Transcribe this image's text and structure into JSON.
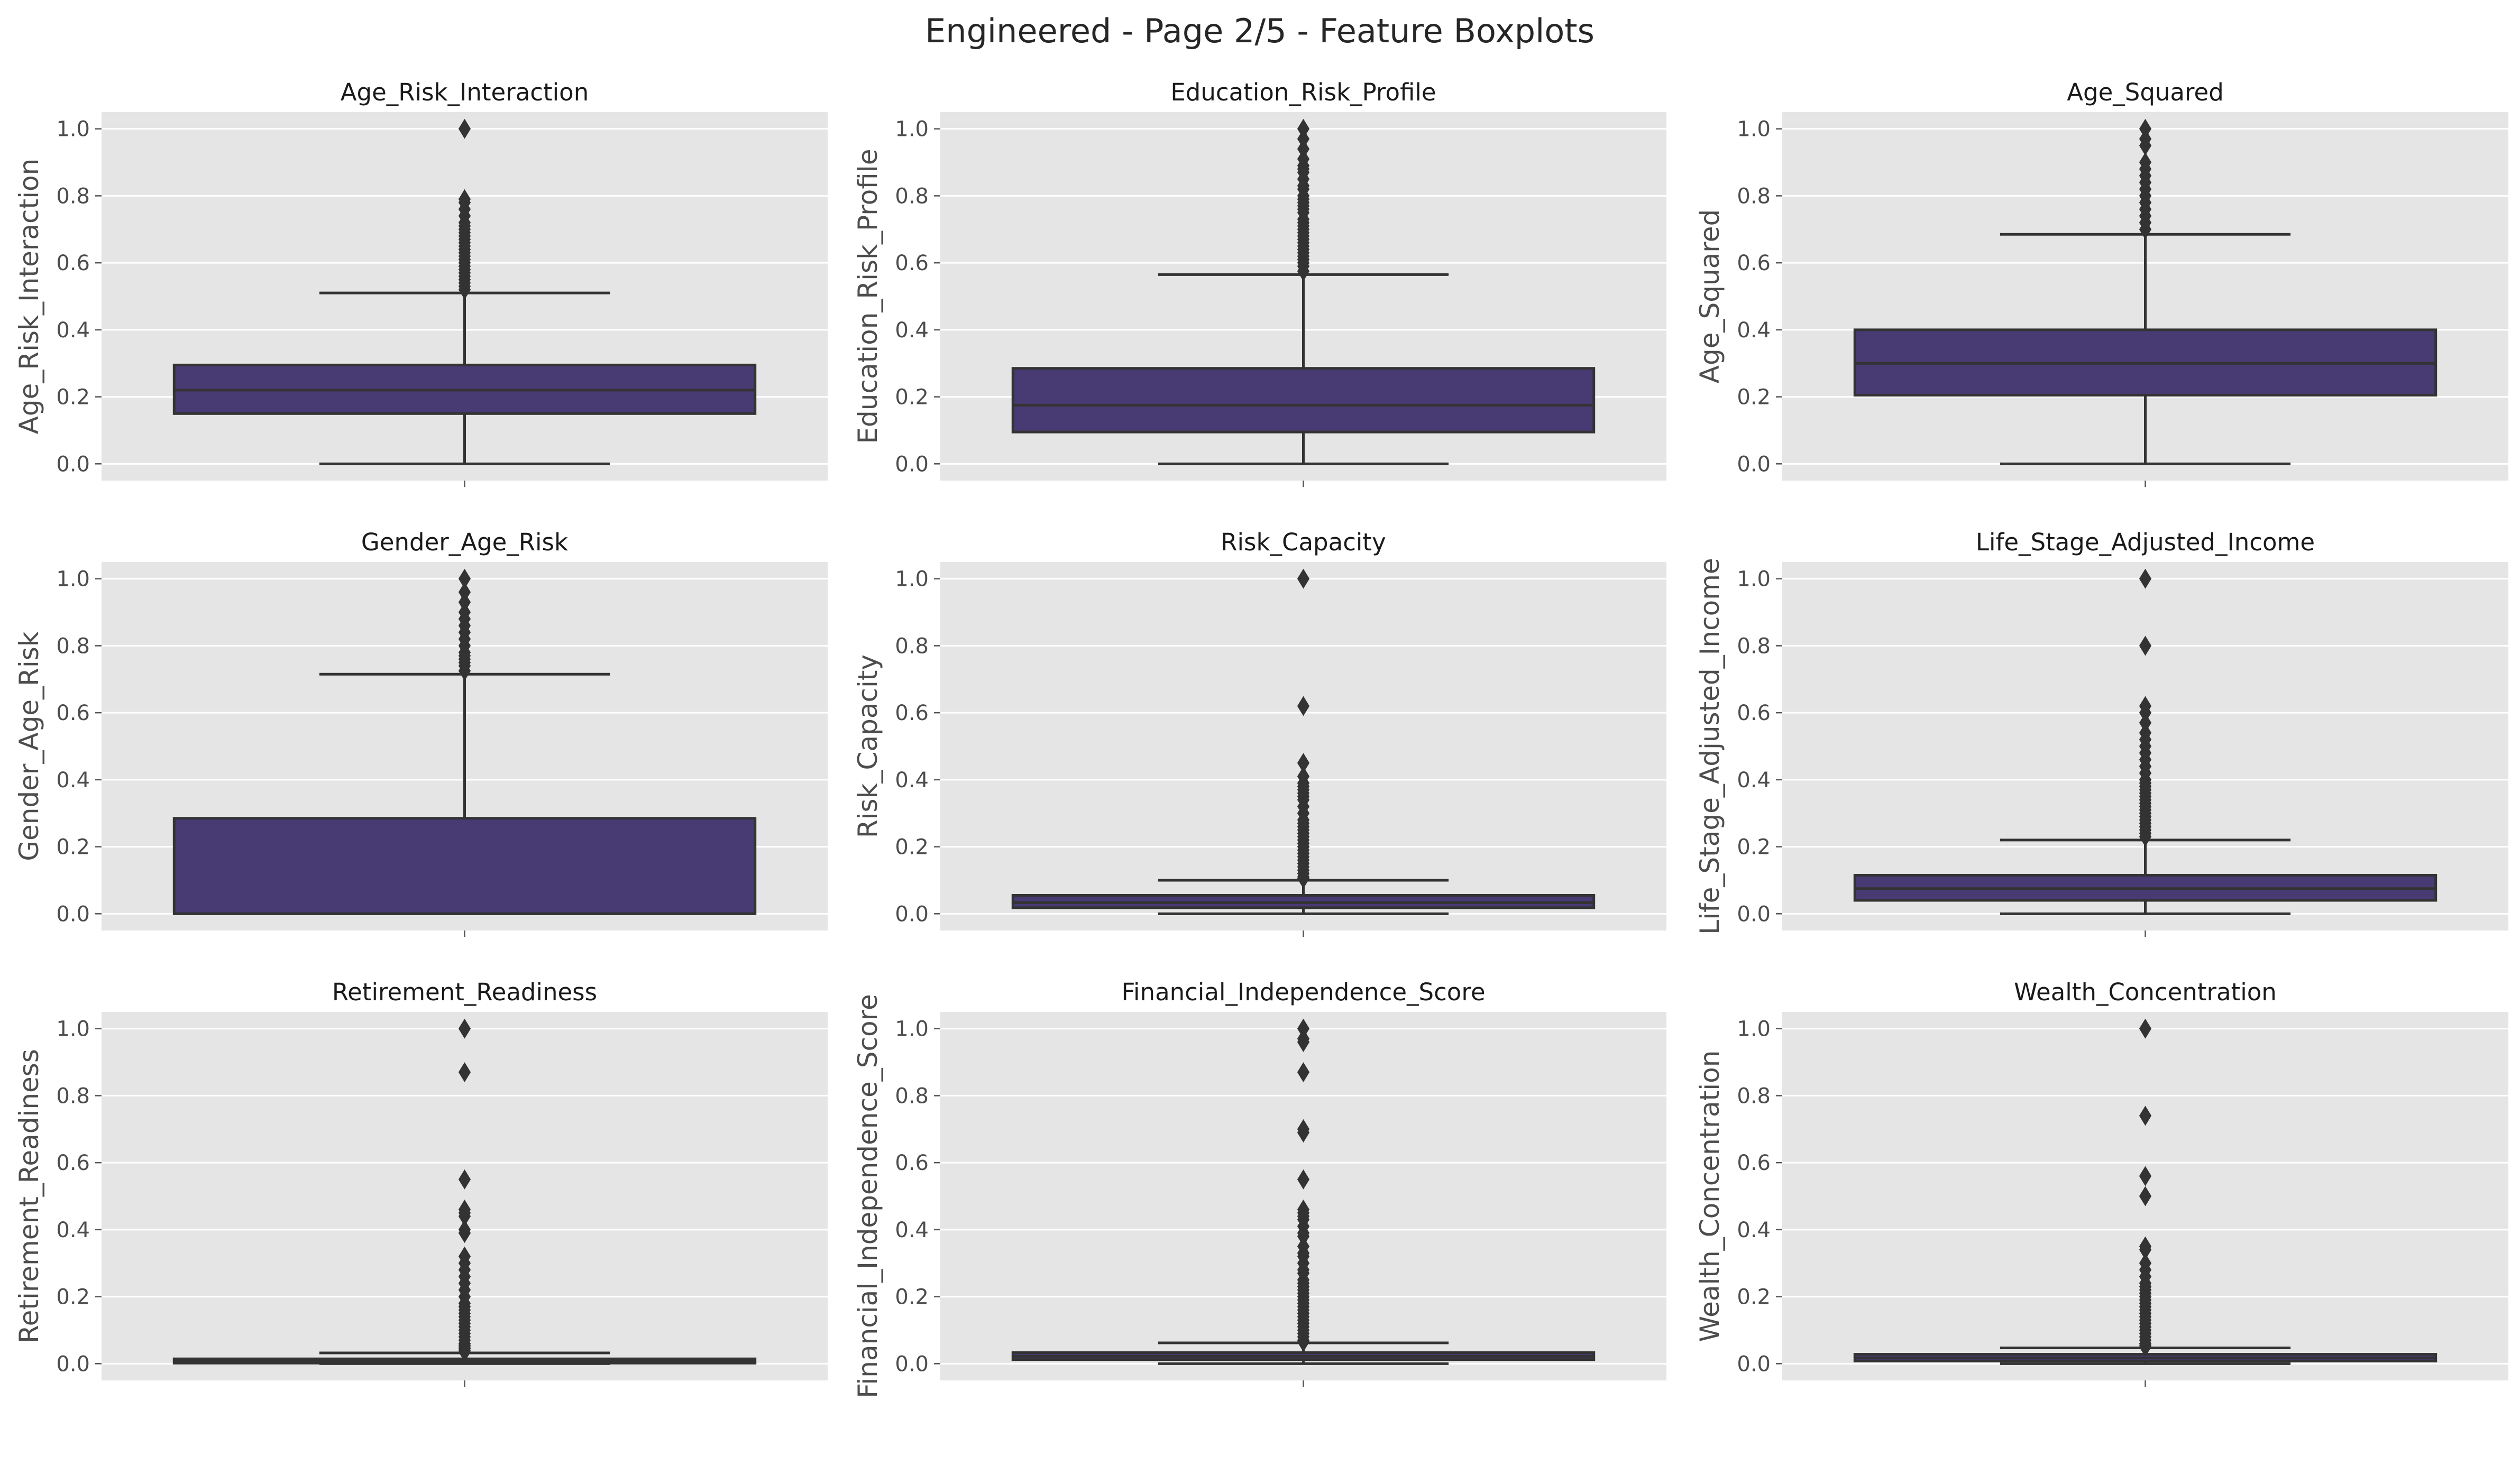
{
  "figure": {
    "title": "Engineered - Page 2/5 - Feature Boxplots",
    "colors": {
      "panel_bg": "#e5e5e5",
      "grid": "#ffffff",
      "box_fill": "#483a73",
      "line": "#333333",
      "tick_text": "#4d4d4d"
    }
  },
  "chart_data": [
    {
      "type": "box",
      "title": "Age_Risk_Interaction",
      "ylabel": "Age_Risk_Interaction",
      "ylim": [
        -0.05,
        1.05
      ],
      "yticks": [
        "0.0",
        "0.2",
        "0.4",
        "0.6",
        "0.8",
        "1.0"
      ],
      "whisker_low": 0.0,
      "q1": 0.15,
      "median": 0.22,
      "q3": 0.295,
      "whisker_high": 0.51,
      "outliers": [
        0.52,
        0.53,
        0.54,
        0.55,
        0.56,
        0.57,
        0.58,
        0.59,
        0.6,
        0.61,
        0.62,
        0.63,
        0.64,
        0.65,
        0.66,
        0.67,
        0.68,
        0.69,
        0.7,
        0.71,
        0.72,
        0.74,
        0.76,
        0.78,
        0.79,
        1.0
      ]
    },
    {
      "type": "box",
      "title": "Education_Risk_Profile",
      "ylabel": "Education_Risk_Profile",
      "ylim": [
        -0.05,
        1.05
      ],
      "yticks": [
        "0.0",
        "0.2",
        "0.4",
        "0.6",
        "0.8",
        "1.0"
      ],
      "whisker_low": 0.0,
      "q1": 0.095,
      "median": 0.175,
      "q3": 0.285,
      "whisker_high": 0.565,
      "outliers": [
        0.575,
        0.59,
        0.6,
        0.61,
        0.62,
        0.63,
        0.64,
        0.65,
        0.66,
        0.67,
        0.68,
        0.69,
        0.7,
        0.71,
        0.72,
        0.73,
        0.75,
        0.76,
        0.77,
        0.78,
        0.79,
        0.8,
        0.82,
        0.83,
        0.85,
        0.87,
        0.88,
        0.89,
        0.91,
        0.94,
        0.97,
        1.0
      ]
    },
    {
      "type": "box",
      "title": "Age_Squared",
      "ylabel": "Age_Squared",
      "ylim": [
        -0.05,
        1.05
      ],
      "yticks": [
        "0.0",
        "0.2",
        "0.4",
        "0.6",
        "0.8",
        "1.0"
      ],
      "whisker_low": 0.0,
      "q1": 0.205,
      "median": 0.3,
      "q3": 0.4,
      "whisker_high": 0.685,
      "outliers": [
        0.7,
        0.72,
        0.74,
        0.76,
        0.78,
        0.8,
        0.82,
        0.84,
        0.86,
        0.88,
        0.9,
        0.95,
        0.97,
        1.0
      ]
    },
    {
      "type": "box",
      "title": "Gender_Age_Risk",
      "ylabel": "Gender_Age_Risk",
      "ylim": [
        -0.05,
        1.05
      ],
      "yticks": [
        "0.0",
        "0.2",
        "0.4",
        "0.6",
        "0.8",
        "1.0"
      ],
      "whisker_low": 0.0,
      "q1": 0.0,
      "median": 0.0,
      "q3": 0.285,
      "whisker_high": 0.715,
      "outliers": [
        0.725,
        0.74,
        0.75,
        0.76,
        0.77,
        0.78,
        0.8,
        0.82,
        0.84,
        0.86,
        0.88,
        0.9,
        0.93,
        0.96,
        1.0
      ]
    },
    {
      "type": "box",
      "title": "Risk_Capacity",
      "ylabel": "Risk_Capacity",
      "ylim": [
        -0.05,
        1.05
      ],
      "yticks": [
        "0.0",
        "0.2",
        "0.4",
        "0.6",
        "0.8",
        "1.0"
      ],
      "whisker_low": 0.0,
      "q1": 0.018,
      "median": 0.033,
      "q3": 0.055,
      "whisker_high": 0.1,
      "outliers": [
        0.105,
        0.11,
        0.12,
        0.13,
        0.14,
        0.15,
        0.16,
        0.17,
        0.18,
        0.19,
        0.2,
        0.21,
        0.22,
        0.23,
        0.24,
        0.25,
        0.26,
        0.27,
        0.28,
        0.3,
        0.32,
        0.34,
        0.35,
        0.36,
        0.37,
        0.38,
        0.39,
        0.41,
        0.45,
        0.62,
        1.0
      ]
    },
    {
      "type": "box",
      "title": "Life_Stage_Adjusted_Income",
      "ylabel": "Life_Stage_Adjusted_Income",
      "ylim": [
        -0.05,
        1.05
      ],
      "yticks": [
        "0.0",
        "0.2",
        "0.4",
        "0.6",
        "0.8",
        "1.0"
      ],
      "whisker_low": 0.0,
      "q1": 0.04,
      "median": 0.075,
      "q3": 0.115,
      "whisker_high": 0.22,
      "outliers": [
        0.23,
        0.24,
        0.25,
        0.26,
        0.27,
        0.28,
        0.29,
        0.3,
        0.31,
        0.32,
        0.33,
        0.34,
        0.35,
        0.36,
        0.37,
        0.38,
        0.39,
        0.4,
        0.42,
        0.44,
        0.46,
        0.48,
        0.5,
        0.52,
        0.54,
        0.57,
        0.6,
        0.62,
        0.8,
        1.0
      ]
    },
    {
      "type": "box",
      "title": "Retirement_Readiness",
      "ylabel": "Retirement_Readiness",
      "ylim": [
        -0.05,
        1.05
      ],
      "yticks": [
        "0.0",
        "0.2",
        "0.4",
        "0.6",
        "0.8",
        "1.0"
      ],
      "whisker_low": 0.0,
      "q1": 0.002,
      "median": 0.007,
      "q3": 0.014,
      "whisker_high": 0.032,
      "outliers": [
        0.035,
        0.04,
        0.045,
        0.05,
        0.055,
        0.06,
        0.07,
        0.08,
        0.09,
        0.1,
        0.11,
        0.12,
        0.13,
        0.14,
        0.15,
        0.16,
        0.17,
        0.18,
        0.2,
        0.22,
        0.24,
        0.26,
        0.28,
        0.3,
        0.32,
        0.39,
        0.4,
        0.44,
        0.45,
        0.46,
        0.55,
        0.87,
        1.0
      ]
    },
    {
      "type": "box",
      "title": "Financial_Independence_Score",
      "ylabel": "Financial_Independence_Score",
      "ylim": [
        -0.05,
        1.05
      ],
      "yticks": [
        "0.0",
        "0.2",
        "0.4",
        "0.6",
        "0.8",
        "1.0"
      ],
      "whisker_low": 0.0,
      "q1": 0.012,
      "median": 0.022,
      "q3": 0.033,
      "whisker_high": 0.062,
      "outliers": [
        0.065,
        0.07,
        0.08,
        0.09,
        0.1,
        0.11,
        0.12,
        0.13,
        0.14,
        0.15,
        0.16,
        0.17,
        0.18,
        0.19,
        0.2,
        0.21,
        0.22,
        0.23,
        0.24,
        0.25,
        0.27,
        0.28,
        0.3,
        0.32,
        0.33,
        0.35,
        0.38,
        0.39,
        0.41,
        0.43,
        0.44,
        0.45,
        0.46,
        0.55,
        0.69,
        0.7,
        0.87,
        0.96,
        0.97,
        1.0
      ]
    },
    {
      "type": "box",
      "title": "Wealth_Concentration",
      "ylabel": "Wealth_Concentration",
      "ylim": [
        -0.05,
        1.05
      ],
      "yticks": [
        "0.0",
        "0.2",
        "0.4",
        "0.6",
        "0.8",
        "1.0"
      ],
      "whisker_low": 0.0,
      "q1": 0.008,
      "median": 0.017,
      "q3": 0.028,
      "whisker_high": 0.047,
      "outliers": [
        0.05,
        0.055,
        0.06,
        0.07,
        0.08,
        0.09,
        0.1,
        0.11,
        0.12,
        0.13,
        0.14,
        0.15,
        0.16,
        0.17,
        0.18,
        0.19,
        0.2,
        0.21,
        0.22,
        0.23,
        0.24,
        0.26,
        0.28,
        0.3,
        0.34,
        0.35,
        0.5,
        0.56,
        0.74,
        1.0
      ]
    }
  ]
}
